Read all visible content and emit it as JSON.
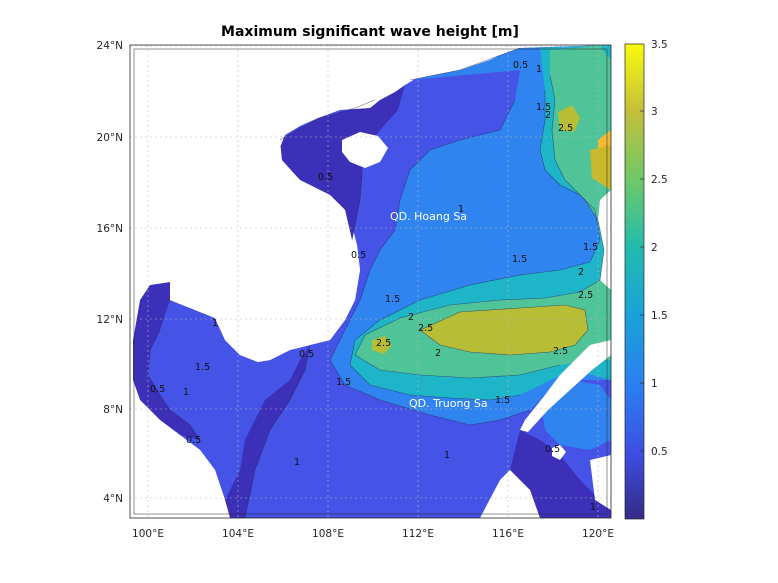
{
  "title": "Maximum significant wave height [m]",
  "map": {
    "lon_ticks": [
      "100°E",
      "104°E",
      "108°E",
      "112°E",
      "116°E",
      "120°E"
    ],
    "lat_ticks": [
      "24°N",
      "20°N",
      "16°N",
      "12°N",
      "8°N",
      "4°N"
    ],
    "lon_range": [
      99.2,
      120.8
    ],
    "lat_range": [
      3.0,
      24.0
    ],
    "grid": true,
    "land_color": "#ffffff",
    "place_labels": [
      "QD. Hoang Sa",
      "QD. Truong Sa"
    ],
    "contour_labels": [
      "0.5",
      "1",
      "1.5",
      "2",
      "2.5"
    ]
  },
  "colorbar": {
    "ticks": [
      "0.5",
      "1",
      "1.5",
      "2",
      "2.5",
      "3",
      "3.5"
    ],
    "range": [
      0,
      3.5
    ],
    "colormap": "parula"
  },
  "colors": {
    "level_0_5": "#3c2fb8",
    "level_1": "#4553e6",
    "level_1_5": "#2f84f0",
    "level_2": "#1fb5c9",
    "level_2_5": "#4ec498",
    "level_3": "#b7bd34",
    "level_3_5": "#f3b930"
  }
}
